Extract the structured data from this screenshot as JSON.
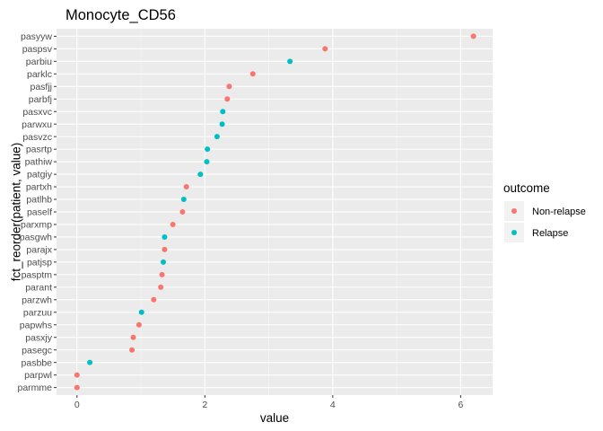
{
  "chart_data": {
    "type": "scatter",
    "title": "Monocyte_CD56",
    "xlabel": "value",
    "ylabel": "fct_reorder(patient, value)",
    "xlim": [
      -0.32,
      6.5
    ],
    "x_ticks": [
      0,
      2,
      4,
      6
    ],
    "grid": true,
    "legend": {
      "title": "outcome",
      "placement": "right",
      "entries": [
        {
          "name": "Non-relapse",
          "color": "#F8766D"
        },
        {
          "name": "Relapse",
          "color": "#00BFC4"
        }
      ]
    },
    "points": [
      {
        "patient": "pasyyw",
        "value": 6.2,
        "outcome": "Non-relapse"
      },
      {
        "patient": "paspsv",
        "value": 3.88,
        "outcome": "Non-relapse"
      },
      {
        "patient": "parbiu",
        "value": 3.33,
        "outcome": "Relapse"
      },
      {
        "patient": "parklc",
        "value": 2.75,
        "outcome": "Non-relapse"
      },
      {
        "patient": "pasfjj",
        "value": 2.38,
        "outcome": "Non-relapse"
      },
      {
        "patient": "parbfj",
        "value": 2.35,
        "outcome": "Non-relapse"
      },
      {
        "patient": "pasxvc",
        "value": 2.28,
        "outcome": "Relapse"
      },
      {
        "patient": "parwxu",
        "value": 2.27,
        "outcome": "Relapse"
      },
      {
        "patient": "pasvzc",
        "value": 2.19,
        "outcome": "Relapse"
      },
      {
        "patient": "pasrtp",
        "value": 2.04,
        "outcome": "Relapse"
      },
      {
        "patient": "pathiw",
        "value": 2.03,
        "outcome": "Relapse"
      },
      {
        "patient": "patgiy",
        "value": 1.93,
        "outcome": "Relapse"
      },
      {
        "patient": "partxh",
        "value": 1.71,
        "outcome": "Non-relapse"
      },
      {
        "patient": "patlhb",
        "value": 1.67,
        "outcome": "Relapse"
      },
      {
        "patient": "paself",
        "value": 1.65,
        "outcome": "Non-relapse"
      },
      {
        "patient": "parxmp",
        "value": 1.5,
        "outcome": "Non-relapse"
      },
      {
        "patient": "pasgwh",
        "value": 1.37,
        "outcome": "Relapse"
      },
      {
        "patient": "parajx",
        "value": 1.37,
        "outcome": "Non-relapse"
      },
      {
        "patient": "patjsp",
        "value": 1.35,
        "outcome": "Relapse"
      },
      {
        "patient": "pasptm",
        "value": 1.33,
        "outcome": "Non-relapse"
      },
      {
        "patient": "parant",
        "value": 1.31,
        "outcome": "Non-relapse"
      },
      {
        "patient": "parzwh",
        "value": 1.2,
        "outcome": "Non-relapse"
      },
      {
        "patient": "parzuu",
        "value": 1.01,
        "outcome": "Relapse"
      },
      {
        "patient": "papwhs",
        "value": 0.97,
        "outcome": "Non-relapse"
      },
      {
        "patient": "pasxjy",
        "value": 0.88,
        "outcome": "Non-relapse"
      },
      {
        "patient": "pasegc",
        "value": 0.86,
        "outcome": "Non-relapse"
      },
      {
        "patient": "pasbbe",
        "value": 0.2,
        "outcome": "Relapse"
      },
      {
        "patient": "parpwl",
        "value": 0.0,
        "outcome": "Non-relapse"
      },
      {
        "patient": "parmme",
        "value": 0.0,
        "outcome": "Non-relapse"
      }
    ]
  }
}
